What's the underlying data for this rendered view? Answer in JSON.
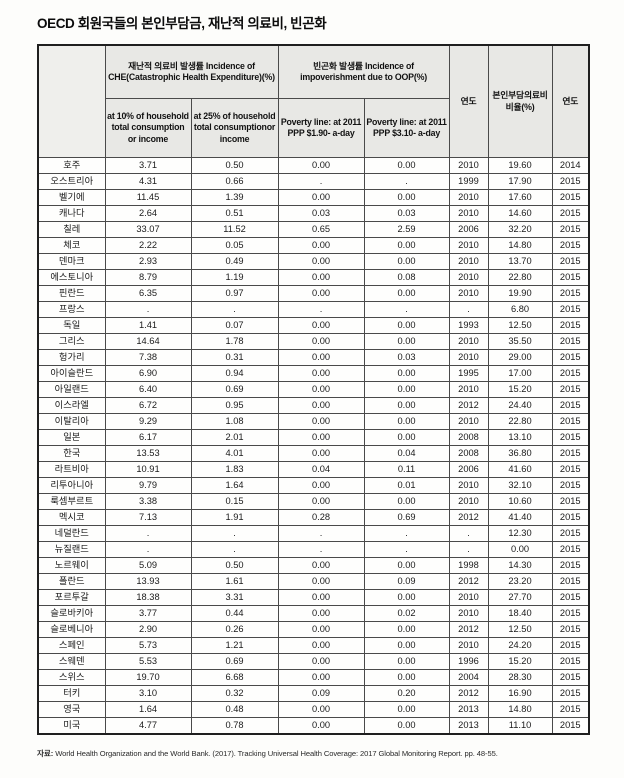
{
  "page": {
    "title": "OECD 회원국들의 본인부담금, 재난적 의료비, 빈곤화"
  },
  "colors": {
    "header_bg": "#e8e8e5",
    "border": "#4a4a4a",
    "outer_border": "#1f1f1f",
    "page_bg": "#fdfdfb"
  },
  "table": {
    "column_groups": {
      "che": "재난적 의료비 발생률 Incidence of CHE(Catastrophic Health Expenditure)(%)",
      "impoverishment": "빈곤화 발생률 Incidence of impoverishment due to OOP(%)"
    },
    "columns": {
      "country": "",
      "at10": "at 10% of household total consumption or income",
      "at25": "at 25% of household total consumptionor income",
      "pov190": "Poverty line: at 2011 PPP $1.90- a-day",
      "pov310": "Poverty line: at 2011 PPP $3.10- a-day",
      "year1": "연도",
      "oop": "본인부담의료비 비율(%)",
      "year2": "연도"
    },
    "rows": [
      {
        "country": "호주",
        "at10": "3.71",
        "at25": "0.50",
        "pov190": "0.00",
        "pov310": "0.00",
        "year1": "2010",
        "oop": "19.60",
        "year2": "2014"
      },
      {
        "country": "오스트리아",
        "at10": "4.31",
        "at25": "0.66",
        "pov190": ".",
        "pov310": ".",
        "year1": "1999",
        "oop": "17.90",
        "year2": "2015"
      },
      {
        "country": "벨기에",
        "at10": "11.45",
        "at25": "1.39",
        "pov190": "0.00",
        "pov310": "0.00",
        "year1": "2010",
        "oop": "17.60",
        "year2": "2015"
      },
      {
        "country": "캐나다",
        "at10": "2.64",
        "at25": "0.51",
        "pov190": "0.03",
        "pov310": "0.03",
        "year1": "2010",
        "oop": "14.60",
        "year2": "2015"
      },
      {
        "country": "칠레",
        "at10": "33.07",
        "at25": "11.52",
        "pov190": "0.65",
        "pov310": "2.59",
        "year1": "2006",
        "oop": "32.20",
        "year2": "2015"
      },
      {
        "country": "체코",
        "at10": "2.22",
        "at25": "0.05",
        "pov190": "0.00",
        "pov310": "0.00",
        "year1": "2010",
        "oop": "14.80",
        "year2": "2015"
      },
      {
        "country": "덴마크",
        "at10": "2.93",
        "at25": "0.49",
        "pov190": "0.00",
        "pov310": "0.00",
        "year1": "2010",
        "oop": "13.70",
        "year2": "2015"
      },
      {
        "country": "에스토니아",
        "at10": "8.79",
        "at25": "1.19",
        "pov190": "0.00",
        "pov310": "0.08",
        "year1": "2010",
        "oop": "22.80",
        "year2": "2015"
      },
      {
        "country": "핀란드",
        "at10": "6.35",
        "at25": "0.97",
        "pov190": "0.00",
        "pov310": "0.00",
        "year1": "2010",
        "oop": "19.90",
        "year2": "2015"
      },
      {
        "country": "프랑스",
        "at10": ".",
        "at25": ".",
        "pov190": ".",
        "pov310": ".",
        "year1": ".",
        "oop": "6.80",
        "year2": "2015"
      },
      {
        "country": "독일",
        "at10": "1.41",
        "at25": "0.07",
        "pov190": "0.00",
        "pov310": "0.00",
        "year1": "1993",
        "oop": "12.50",
        "year2": "2015"
      },
      {
        "country": "그리스",
        "at10": "14.64",
        "at25": "1.78",
        "pov190": "0.00",
        "pov310": "0.00",
        "year1": "2010",
        "oop": "35.50",
        "year2": "2015"
      },
      {
        "country": "헝가리",
        "at10": "7.38",
        "at25": "0.31",
        "pov190": "0.00",
        "pov310": "0.03",
        "year1": "2010",
        "oop": "29.00",
        "year2": "2015"
      },
      {
        "country": "아이슬란드",
        "at10": "6.90",
        "at25": "0.94",
        "pov190": "0.00",
        "pov310": "0.00",
        "year1": "1995",
        "oop": "17.00",
        "year2": "2015"
      },
      {
        "country": "아일랜드",
        "at10": "6.40",
        "at25": "0.69",
        "pov190": "0.00",
        "pov310": "0.00",
        "year1": "2010",
        "oop": "15.20",
        "year2": "2015"
      },
      {
        "country": "이스라엘",
        "at10": "6.72",
        "at25": "0.95",
        "pov190": "0.00",
        "pov310": "0.00",
        "year1": "2012",
        "oop": "24.40",
        "year2": "2015"
      },
      {
        "country": "이탈리아",
        "at10": "9.29",
        "at25": "1.08",
        "pov190": "0.00",
        "pov310": "0.00",
        "year1": "2010",
        "oop": "22.80",
        "year2": "2015"
      },
      {
        "country": "일본",
        "at10": "6.17",
        "at25": "2.01",
        "pov190": "0.00",
        "pov310": "0.00",
        "year1": "2008",
        "oop": "13.10",
        "year2": "2015"
      },
      {
        "country": "한국",
        "at10": "13.53",
        "at25": "4.01",
        "pov190": "0.00",
        "pov310": "0.04",
        "year1": "2008",
        "oop": "36.80",
        "year2": "2015"
      },
      {
        "country": "라트비아",
        "at10": "10.91",
        "at25": "1.83",
        "pov190": "0.04",
        "pov310": "0.11",
        "year1": "2006",
        "oop": "41.60",
        "year2": "2015"
      },
      {
        "country": "리투아니아",
        "at10": "9.79",
        "at25": "1.64",
        "pov190": "0.00",
        "pov310": "0.01",
        "year1": "2010",
        "oop": "32.10",
        "year2": "2015"
      },
      {
        "country": "룩셈부르트",
        "at10": "3.38",
        "at25": "0.15",
        "pov190": "0.00",
        "pov310": "0.00",
        "year1": "2010",
        "oop": "10.60",
        "year2": "2015"
      },
      {
        "country": "멕시코",
        "at10": "7.13",
        "at25": "1.91",
        "pov190": "0.28",
        "pov310": "0.69",
        "year1": "2012",
        "oop": "41.40",
        "year2": "2015"
      },
      {
        "country": "네덜란드",
        "at10": ".",
        "at25": ".",
        "pov190": ".",
        "pov310": ".",
        "year1": ".",
        "oop": "12.30",
        "year2": "2015"
      },
      {
        "country": "뉴질랜드",
        "at10": ".",
        "at25": ".",
        "pov190": ".",
        "pov310": ".",
        "year1": ".",
        "oop": "0.00",
        "year2": "2015"
      },
      {
        "country": "노르웨이",
        "at10": "5.09",
        "at25": "0.50",
        "pov190": "0.00",
        "pov310": "0.00",
        "year1": "1998",
        "oop": "14.30",
        "year2": "2015"
      },
      {
        "country": "폴란드",
        "at10": "13.93",
        "at25": "1.61",
        "pov190": "0.00",
        "pov310": "0.09",
        "year1": "2012",
        "oop": "23.20",
        "year2": "2015"
      },
      {
        "country": "포르투갈",
        "at10": "18.38",
        "at25": "3.31",
        "pov190": "0.00",
        "pov310": "0.00",
        "year1": "2010",
        "oop": "27.70",
        "year2": "2015"
      },
      {
        "country": "슬로바키아",
        "at10": "3.77",
        "at25": "0.44",
        "pov190": "0.00",
        "pov310": "0.02",
        "year1": "2010",
        "oop": "18.40",
        "year2": "2015"
      },
      {
        "country": "슬로베니아",
        "at10": "2.90",
        "at25": "0.26",
        "pov190": "0.00",
        "pov310": "0.00",
        "year1": "2012",
        "oop": "12.50",
        "year2": "2015"
      },
      {
        "country": "스페인",
        "at10": "5.73",
        "at25": "1.21",
        "pov190": "0.00",
        "pov310": "0.00",
        "year1": "2010",
        "oop": "24.20",
        "year2": "2015"
      },
      {
        "country": "스웨덴",
        "at10": "5.53",
        "at25": "0.69",
        "pov190": "0.00",
        "pov310": "0.00",
        "year1": "1996",
        "oop": "15.20",
        "year2": "2015"
      },
      {
        "country": "스위스",
        "at10": "19.70",
        "at25": "6.68",
        "pov190": "0.00",
        "pov310": "0.00",
        "year1": "2004",
        "oop": "28.30",
        "year2": "2015"
      },
      {
        "country": "터키",
        "at10": "3.10",
        "at25": "0.32",
        "pov190": "0.09",
        "pov310": "0.20",
        "year1": "2012",
        "oop": "16.90",
        "year2": "2015"
      },
      {
        "country": "영국",
        "at10": "1.64",
        "at25": "0.48",
        "pov190": "0.00",
        "pov310": "0.00",
        "year1": "2013",
        "oop": "14.80",
        "year2": "2015"
      },
      {
        "country": "미국",
        "at10": "4.77",
        "at25": "0.78",
        "pov190": "0.00",
        "pov310": "0.00",
        "year1": "2013",
        "oop": "11.10",
        "year2": "2015"
      }
    ]
  },
  "source": {
    "label": "자료:",
    "text": "World Health Organization and the World Bank. (2017). Tracking Universal Health Coverage: 2017 Global Monitoring Report. pp. 48-55."
  }
}
